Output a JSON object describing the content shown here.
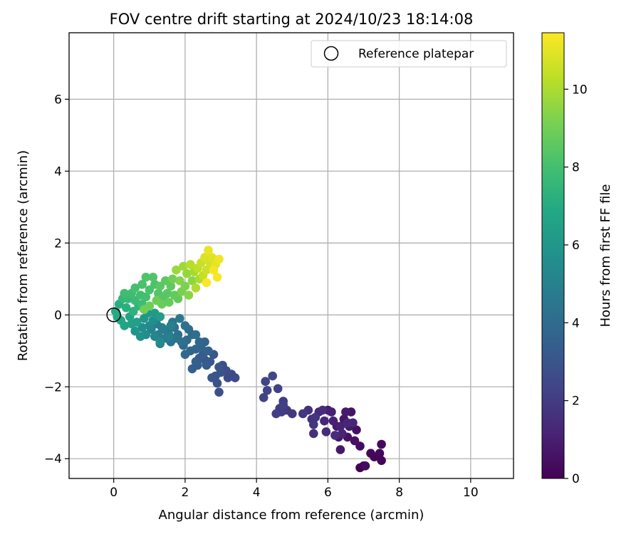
{
  "chart_data": {
    "type": "scatter",
    "title": "FOV centre drift starting at 2024/10/23 18:14:08",
    "xlabel": "Angular distance from reference (arcmin)",
    "ylabel": "Rotation from reference (arcmin)",
    "xlim": [
      -1.25,
      11.2
    ],
    "ylim": [
      -4.55,
      7.85
    ],
    "xticks": [
      0,
      2,
      4,
      6,
      8,
      10
    ],
    "yticks": [
      -4,
      -2,
      0,
      2,
      4,
      6
    ],
    "grid": true,
    "legend": {
      "position": "top-right",
      "entries": [
        {
          "label": "Reference platepar",
          "marker": "open-circle"
        }
      ]
    },
    "reference_point": {
      "x": 0,
      "y": 0
    },
    "colorbar": {
      "label": "Hours from first FF file",
      "min": 0,
      "max": 11.45,
      "ticks": [
        0,
        2,
        4,
        6,
        8,
        10
      ],
      "colormap": "viridis",
      "stops": [
        "#440154",
        "#482475",
        "#414487",
        "#355f8d",
        "#2a788e",
        "#21918c",
        "#22a884",
        "#44bf70",
        "#7ad151",
        "#bddf26",
        "#fde725"
      ]
    },
    "points": [
      [
        6.9,
        -4.25,
        0.0
      ],
      [
        7.0,
        -4.2,
        0.05
      ],
      [
        7.5,
        -4.05,
        0.1
      ],
      [
        7.3,
        -3.95,
        0.15
      ],
      [
        7.2,
        -3.85,
        0.2
      ],
      [
        7.45,
        -3.85,
        0.25
      ],
      [
        7.5,
        -3.6,
        0.3
      ],
      [
        7.05,
        -4.2,
        0.35
      ],
      [
        6.9,
        -3.65,
        0.4
      ],
      [
        6.75,
        -3.5,
        0.45
      ],
      [
        6.8,
        -3.2,
        0.5
      ],
      [
        6.55,
        -3.4,
        0.55
      ],
      [
        6.65,
        -2.7,
        0.6
      ],
      [
        6.45,
        -2.9,
        0.65
      ],
      [
        6.3,
        -3.4,
        0.7
      ],
      [
        6.35,
        -3.75,
        0.75
      ],
      [
        6.6,
        -3.1,
        0.8
      ],
      [
        6.5,
        -2.7,
        0.85
      ],
      [
        6.25,
        -3.1,
        0.9
      ],
      [
        6.0,
        -2.65,
        0.95
      ],
      [
        6.1,
        -2.7,
        1.0
      ],
      [
        6.15,
        -2.95,
        1.05
      ],
      [
        6.35,
        -3.1,
        1.1
      ],
      [
        6.4,
        -3.3,
        1.15
      ],
      [
        6.7,
        -3.0,
        1.2
      ],
      [
        6.55,
        -3.0,
        1.25
      ],
      [
        5.9,
        -2.95,
        1.3
      ],
      [
        5.75,
        -2.7,
        1.35
      ],
      [
        5.95,
        -3.25,
        1.4
      ],
      [
        6.2,
        -3.35,
        1.45
      ],
      [
        5.85,
        -2.65,
        1.5
      ],
      [
        5.6,
        -3.3,
        1.55
      ],
      [
        5.55,
        -2.9,
        1.6
      ],
      [
        5.45,
        -2.65,
        1.65
      ],
      [
        5.65,
        -2.85,
        1.7
      ],
      [
        5.6,
        -3.05,
        1.75
      ],
      [
        5.3,
        -2.75,
        1.8
      ],
      [
        5.0,
        -2.75,
        1.85
      ],
      [
        4.85,
        -2.65,
        1.9
      ],
      [
        4.75,
        -2.4,
        1.95
      ],
      [
        4.65,
        -2.6,
        2.0
      ],
      [
        4.7,
        -2.7,
        2.05
      ],
      [
        4.55,
        -2.75,
        2.1
      ],
      [
        4.75,
        -2.5,
        2.15
      ],
      [
        4.6,
        -2.05,
        2.2
      ],
      [
        4.2,
        -2.3,
        2.25
      ],
      [
        4.3,
        -2.1,
        2.3
      ],
      [
        4.25,
        -1.85,
        2.35
      ],
      [
        4.45,
        -1.7,
        2.4
      ],
      [
        3.3,
        -1.65,
        2.55
      ],
      [
        3.4,
        -1.75,
        2.6
      ],
      [
        3.2,
        -1.75,
        2.65
      ],
      [
        3.15,
        -1.55,
        2.7
      ],
      [
        3.05,
        -1.4,
        2.75
      ],
      [
        2.95,
        -2.15,
        2.8
      ],
      [
        2.9,
        -1.9,
        2.85
      ],
      [
        3.0,
        -1.6,
        2.9
      ],
      [
        2.85,
        -1.7,
        2.95
      ],
      [
        2.75,
        -1.75,
        3.0
      ],
      [
        2.95,
        -1.45,
        3.05
      ],
      [
        2.8,
        -1.1,
        3.1
      ],
      [
        2.7,
        -1.3,
        3.15
      ],
      [
        2.55,
        -1.25,
        3.2
      ],
      [
        2.6,
        -1.4,
        3.25
      ],
      [
        2.4,
        -1.2,
        3.3
      ],
      [
        2.5,
        -1.1,
        3.35
      ],
      [
        2.35,
        -1.4,
        3.4
      ],
      [
        2.2,
        -1.5,
        3.45
      ],
      [
        2.3,
        -1.3,
        3.5
      ],
      [
        2.65,
        -1.0,
        3.55
      ],
      [
        2.55,
        -0.75,
        3.6
      ],
      [
        2.45,
        -0.9,
        3.65
      ],
      [
        2.3,
        -0.95,
        3.7
      ],
      [
        2.4,
        -0.75,
        3.75
      ],
      [
        2.15,
        -1.0,
        3.8
      ],
      [
        2.0,
        -1.1,
        3.85
      ],
      [
        2.2,
        -0.55,
        3.9
      ],
      [
        2.05,
        -0.7,
        3.95
      ],
      [
        1.95,
        -0.85,
        4.0
      ],
      [
        2.1,
        -0.4,
        4.05
      ],
      [
        2.3,
        -0.55,
        4.1
      ],
      [
        1.8,
        -0.55,
        4.15
      ],
      [
        1.9,
        -0.75,
        4.2
      ],
      [
        2.0,
        -0.3,
        4.25
      ],
      [
        1.7,
        -0.35,
        4.3
      ],
      [
        1.75,
        -0.65,
        4.35
      ],
      [
        1.6,
        -0.75,
        4.4
      ],
      [
        1.5,
        -0.45,
        4.45
      ],
      [
        1.65,
        -0.2,
        4.5
      ],
      [
        1.55,
        -0.55,
        4.55
      ],
      [
        1.85,
        -0.1,
        4.6
      ],
      [
        1.4,
        -0.4,
        4.65
      ],
      [
        1.45,
        -0.65,
        4.7
      ],
      [
        1.3,
        -0.8,
        4.75
      ],
      [
        1.35,
        -0.35,
        4.8
      ],
      [
        1.25,
        -0.55,
        4.85
      ],
      [
        1.2,
        -0.25,
        4.9
      ],
      [
        1.55,
        -0.6,
        4.95
      ],
      [
        1.6,
        -0.3,
        5.0
      ],
      [
        1.05,
        -0.4,
        5.1
      ],
      [
        1.15,
        -0.6,
        5.2
      ],
      [
        1.0,
        -0.3,
        5.3
      ],
      [
        1.3,
        -0.75,
        5.4
      ],
      [
        0.9,
        -0.55,
        5.5
      ],
      [
        0.8,
        -0.35,
        5.6
      ],
      [
        1.1,
        -0.15,
        5.7
      ],
      [
        0.75,
        -0.6,
        5.8
      ],
      [
        0.6,
        -0.45,
        5.9
      ],
      [
        0.85,
        -0.1,
        6.0
      ],
      [
        0.95,
        0.05,
        6.1
      ],
      [
        1.15,
        0.05,
        6.2
      ],
      [
        1.3,
        -0.05,
        6.3
      ],
      [
        0.65,
        -0.2,
        6.4
      ],
      [
        0.5,
        -0.25,
        6.5
      ],
      [
        0.45,
        -0.05,
        6.6
      ],
      [
        0.3,
        -0.3,
        6.7
      ],
      [
        0.2,
        -0.15,
        6.8
      ],
      [
        0.1,
        -0.05,
        6.9
      ],
      [
        0.05,
        0.1,
        7.0
      ],
      [
        0.15,
        0.3,
        7.1
      ],
      [
        0.35,
        0.2,
        7.2
      ],
      [
        0.55,
        0.1,
        7.3
      ],
      [
        0.7,
        0.25,
        7.4
      ],
      [
        0.25,
        0.45,
        7.5
      ],
      [
        0.4,
        0.45,
        7.6
      ],
      [
        0.6,
        0.4,
        7.7
      ],
      [
        0.8,
        0.3,
        7.8
      ],
      [
        0.3,
        0.6,
        7.85
      ],
      [
        0.5,
        0.6,
        7.9
      ],
      [
        0.75,
        0.55,
        7.95
      ],
      [
        0.9,
        0.5,
        8.0
      ],
      [
        0.6,
        0.75,
        8.05
      ],
      [
        0.8,
        0.85,
        8.1
      ],
      [
        1.0,
        0.7,
        8.15
      ],
      [
        1.15,
        0.85,
        8.2
      ],
      [
        0.9,
        1.05,
        8.25
      ],
      [
        1.1,
        1.05,
        8.3
      ],
      [
        1.25,
        0.6,
        8.35
      ],
      [
        1.4,
        0.45,
        8.4
      ],
      [
        1.5,
        0.6,
        8.45
      ],
      [
        1.3,
        0.8,
        8.5
      ],
      [
        1.45,
        0.95,
        8.55
      ],
      [
        1.6,
        0.8,
        8.6
      ],
      [
        1.7,
        0.55,
        8.65
      ],
      [
        1.8,
        0.45,
        8.7
      ],
      [
        1.55,
        0.35,
        8.75
      ],
      [
        1.35,
        0.3,
        8.8
      ],
      [
        1.2,
        0.4,
        8.85
      ],
      [
        1.0,
        0.25,
        8.9
      ],
      [
        0.85,
        0.15,
        8.95
      ],
      [
        1.65,
        1.0,
        9.0
      ],
      [
        1.9,
        0.65,
        9.1
      ],
      [
        2.0,
        0.8,
        9.2
      ],
      [
        1.85,
        0.95,
        9.3
      ],
      [
        2.1,
        0.55,
        9.4
      ],
      [
        2.2,
        0.95,
        9.5
      ],
      [
        2.05,
        1.15,
        9.6
      ],
      [
        1.75,
        1.25,
        9.7
      ],
      [
        1.95,
        1.35,
        9.8
      ],
      [
        2.25,
        1.2,
        9.9
      ],
      [
        2.4,
        1.0,
        10.0
      ],
      [
        2.3,
        0.75,
        10.1
      ],
      [
        2.15,
        1.4,
        10.2
      ],
      [
        2.35,
        1.3,
        10.3
      ],
      [
        2.5,
        1.1,
        10.4
      ],
      [
        2.45,
        1.45,
        10.5
      ],
      [
        2.6,
        1.25,
        10.6
      ],
      [
        2.7,
        1.45,
        10.7
      ],
      [
        2.55,
        1.6,
        10.8
      ],
      [
        2.75,
        1.6,
        10.9
      ],
      [
        2.85,
        1.4,
        11.0
      ],
      [
        2.65,
        1.8,
        11.1
      ],
      [
        2.95,
        1.55,
        11.2
      ],
      [
        2.8,
        1.25,
        11.3
      ],
      [
        2.9,
        1.05,
        11.35
      ],
      [
        2.6,
        0.9,
        11.4
      ]
    ]
  }
}
